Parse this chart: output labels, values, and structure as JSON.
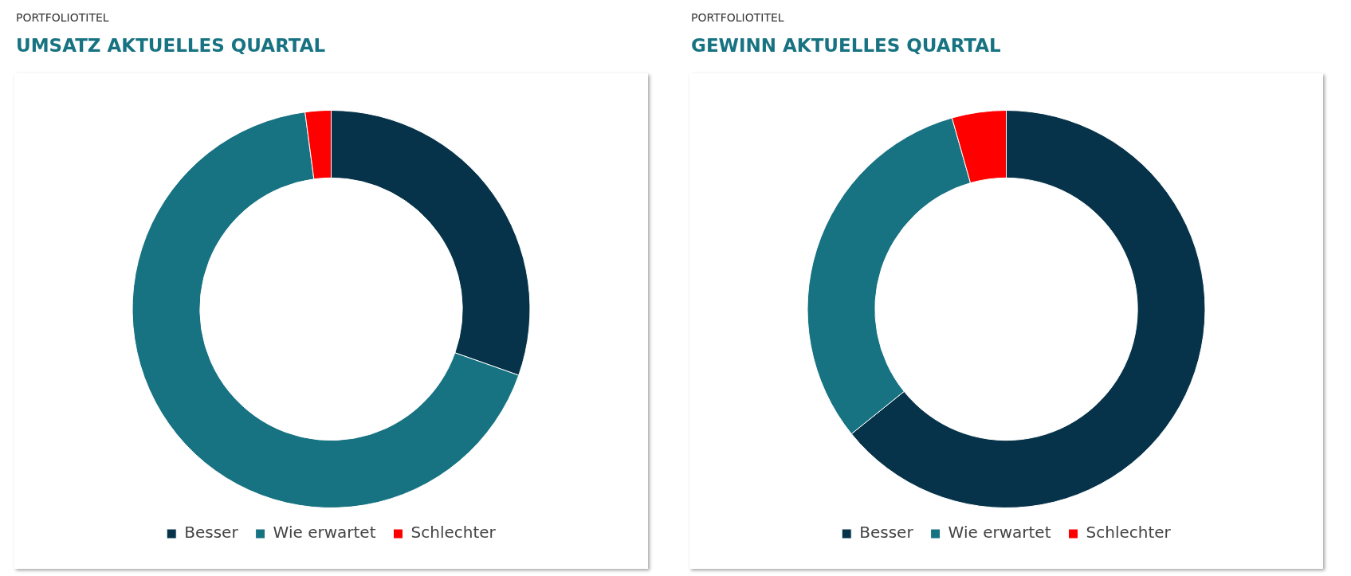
{
  "chart_data": [
    {
      "type": "donut",
      "subtitle": "PORTFOLIOTITEL",
      "title": "UMSATZ AKTUELLES QUARTAL",
      "categories": [
        "Besser",
        "Wie erwartet",
        "Schlechter"
      ],
      "values": [
        30.4,
        67.5,
        2.1
      ],
      "colors": [
        "#063349",
        "#177281",
        "#ff0000"
      ],
      "legend": "bottom"
    },
    {
      "type": "donut",
      "subtitle": "PORTFOLIOTITEL",
      "title": "GEWINN AKTUELLES QUARTAL",
      "categories": [
        "Besser",
        "Wie erwartet",
        "Schlechter"
      ],
      "values": [
        64.2,
        31.4,
        4.4
      ],
      "colors": [
        "#063349",
        "#177281",
        "#ff0000"
      ],
      "legend": "bottom"
    }
  ]
}
